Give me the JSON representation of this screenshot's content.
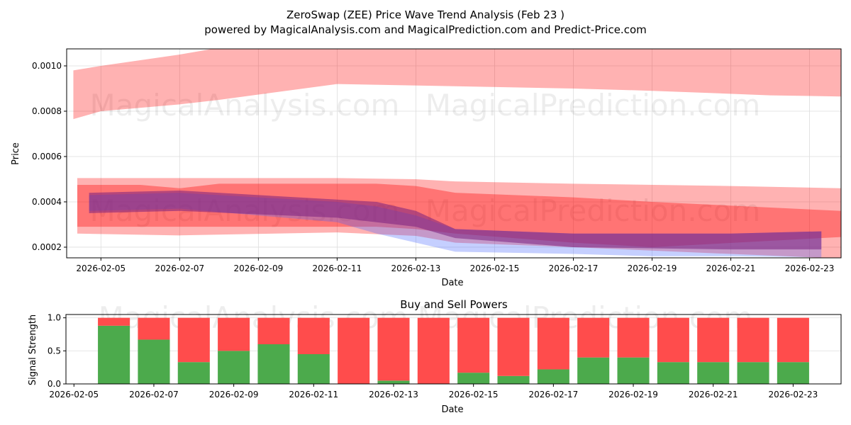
{
  "chart_data": [
    {
      "type": "area",
      "title": "ZeroSwap (ZEE) Price Wave Trend Analysis (Feb 23 )",
      "subtitle": "powered by MagicalAnalysis.com and MagicalPrediction.com and Predict-Price.com",
      "xlabel": "Date",
      "ylabel": "Price",
      "x_unit": "day of Feb 2026",
      "xlim": [
        4.13,
        23.8
      ],
      "ylim": [
        0.000153,
        0.001075
      ],
      "grid": true,
      "x_ticks": [
        5,
        7,
        9,
        11,
        13,
        15,
        17,
        19,
        21,
        23
      ],
      "x_tick_labels": [
        "2026-02-05",
        "2026-02-07",
        "2026-02-09",
        "2026-02-11",
        "2026-02-13",
        "2026-02-15",
        "2026-02-17",
        "2026-02-19",
        "2026-02-21",
        "2026-02-23"
      ],
      "y_ticks": [
        0.0002,
        0.0004,
        0.0006,
        0.0008,
        0.001
      ],
      "y_tick_labels": [
        "0.0002",
        "0.0004",
        "0.0006",
        "0.0008",
        "0.0010"
      ],
      "watermarks": [
        "MagicalAnalysis.com",
        "MagicalPrediction.com"
      ],
      "bands": [
        {
          "name": "outer-top",
          "color": "#ff0000",
          "opacity": 0.3,
          "x": [
            4.3,
            5,
            7,
            8,
            11,
            14,
            17,
            19,
            22,
            23.8
          ],
          "upper": [
            0.00098,
            0.001,
            0.00105,
            0.00108,
            0.00108,
            0.00108,
            0.00108,
            0.00108,
            0.00108,
            0.00108
          ],
          "lower": [
            0.000765,
            0.0008,
            0.00083,
            0.00085,
            0.00092,
            0.00091,
            0.0009,
            0.00089,
            0.00087,
            0.000865
          ]
        },
        {
          "name": "wide-light",
          "color": "#ff0000",
          "opacity": 0.3,
          "x": [
            4.4,
            7,
            11,
            13,
            14,
            17,
            21,
            23.8
          ],
          "upper": [
            0.000505,
            0.000505,
            0.000505,
            0.0005,
            0.00049,
            0.00048,
            0.00047,
            0.00046
          ],
          "lower": [
            0.00026,
            0.000252,
            0.000265,
            0.00025,
            0.00022,
            0.0002,
            0.00017,
            0.00015
          ]
        },
        {
          "name": "mid-red",
          "color": "#ff0000",
          "opacity": 0.35,
          "x": [
            4.4,
            6,
            7,
            8,
            12,
            13,
            14,
            17,
            19,
            23.8
          ],
          "upper": [
            0.000475,
            0.000475,
            0.00046,
            0.00048,
            0.00048,
            0.00047,
            0.00044,
            0.00042,
            0.0004,
            0.00036
          ],
          "lower": [
            0.00029,
            0.00029,
            0.00029,
            0.00029,
            0.00029,
            0.00028,
            0.00026,
            0.00022,
            0.0002,
            0.000245
          ]
        },
        {
          "name": "blue",
          "color": "#4060ff",
          "opacity": 0.3,
          "x": [
            4.7,
            7,
            11,
            12,
            13,
            14,
            17,
            19,
            21,
            23.3
          ],
          "upper": [
            0.00043,
            0.00044,
            0.0004,
            0.00038,
            0.00034,
            0.00028,
            0.00026,
            0.00026,
            0.00026,
            0.00027
          ],
          "lower": [
            0.00036,
            0.00037,
            0.00031,
            0.00026,
            0.00022,
            0.00018,
            0.00017,
            0.00016,
            0.00016,
            0.000155
          ]
        },
        {
          "name": "purple",
          "color": "#7a2080",
          "opacity": 0.55,
          "x": [
            4.7,
            7,
            11,
            12,
            13,
            14,
            17,
            21,
            23.3
          ],
          "upper": [
            0.00044,
            0.00045,
            0.00041,
            0.0004,
            0.00036,
            0.00028,
            0.00026,
            0.00026,
            0.00027
          ],
          "lower": [
            0.00035,
            0.00036,
            0.00033,
            0.00031,
            0.00029,
            0.00024,
            0.0002,
            0.00019,
            0.00019
          ]
        }
      ]
    },
    {
      "type": "bar",
      "title": "Buy and Sell Powers",
      "xlabel": "Date",
      "ylabel": "Signal Strength",
      "xlim": [
        4.8,
        24.2
      ],
      "ylim": [
        0,
        1.05
      ],
      "x_ticks": [
        5,
        7,
        9,
        11,
        13,
        15,
        17,
        19,
        21,
        23
      ],
      "x_tick_labels": [
        "2026-02-05",
        "2026-02-07",
        "2026-02-09",
        "2026-02-11",
        "2026-02-13",
        "2026-02-15",
        "2026-02-17",
        "2026-02-19",
        "2026-02-21",
        "2026-02-23"
      ],
      "y_ticks": [
        0,
        0.5,
        1
      ],
      "y_tick_labels": [
        "0.0",
        "0.5",
        "1.0"
      ],
      "x": [
        6,
        7,
        8,
        9,
        10,
        11,
        12,
        13,
        14,
        15,
        16,
        17,
        18,
        19,
        20,
        21,
        22,
        23
      ],
      "series": [
        {
          "name": "Buy",
          "color": "#4caa4c",
          "values": [
            0.88,
            0.67,
            0.33,
            0.5,
            0.6,
            0.45,
            0,
            0.05,
            0,
            0.17,
            0.12,
            0.22,
            0.4,
            0.4,
            0.33,
            0.33,
            0.33,
            0.33
          ]
        },
        {
          "name": "Sell",
          "color": "#ff4c4c",
          "values": [
            0.12,
            0.33,
            0.67,
            0.5,
            0.4,
            0.55,
            1,
            0.95,
            1,
            0.83,
            0.88,
            0.78,
            0.6,
            0.6,
            0.67,
            0.67,
            0.67,
            0.67
          ]
        }
      ]
    }
  ]
}
